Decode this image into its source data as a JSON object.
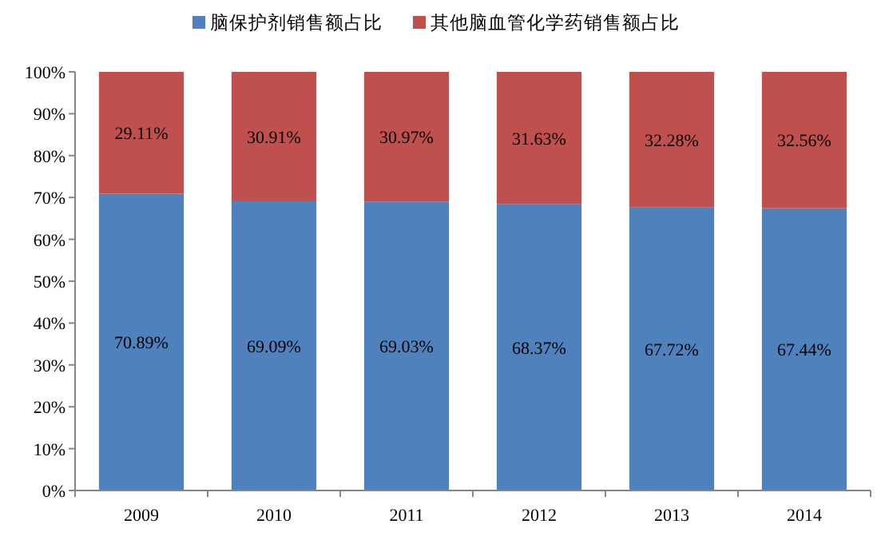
{
  "chart_data": {
    "type": "bar",
    "stacked": true,
    "legend": "top",
    "grid": false,
    "categories": [
      "2009",
      "2010",
      "2011",
      "2012",
      "2013",
      "2014"
    ],
    "ylim": [
      0,
      100
    ],
    "yticks": [
      {
        "value": 0,
        "label": "0%"
      },
      {
        "value": 10,
        "label": "10%"
      },
      {
        "value": 20,
        "label": "20%"
      },
      {
        "value": 30,
        "label": "30%"
      },
      {
        "value": 40,
        "label": "40%"
      },
      {
        "value": 50,
        "label": "50%"
      },
      {
        "value": 60,
        "label": "60%"
      },
      {
        "value": 70,
        "label": "70%"
      },
      {
        "value": 80,
        "label": "80%"
      },
      {
        "value": 90,
        "label": "90%"
      },
      {
        "value": 100,
        "label": "100%"
      }
    ],
    "series": [
      {
        "name": "脑保护剂销售额占比",
        "color": "#4f81bd",
        "values": [
          70.89,
          69.09,
          69.03,
          68.37,
          67.72,
          67.44
        ],
        "value_labels": [
          "70.89%",
          "69.09%",
          "69.03%",
          "68.37%",
          "67.72%",
          "67.44%"
        ]
      },
      {
        "name": "其他脑血管化学药销售额占比",
        "color": "#c0504d",
        "values": [
          29.11,
          30.91,
          30.97,
          31.63,
          32.28,
          32.56
        ],
        "value_labels": [
          "29.11%",
          "30.91%",
          "30.97%",
          "31.63%",
          "32.28%",
          "32.56%"
        ]
      }
    ]
  }
}
